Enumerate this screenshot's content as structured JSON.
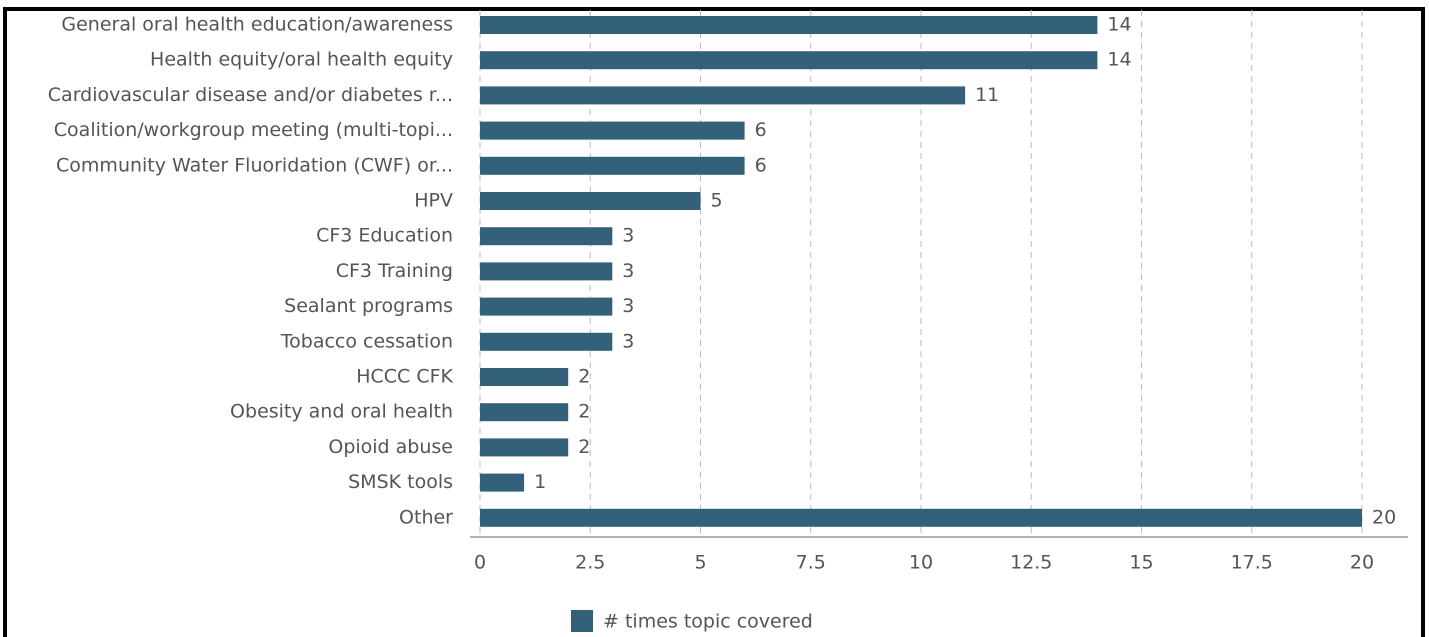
{
  "chart_data": {
    "type": "bar",
    "orientation": "horizontal",
    "categories": [
      "General oral health education/awareness",
      "Health equity/oral health equity",
      "Cardiovascular disease and/or diabetes r...",
      "Coalition/workgroup meeting (multi-topi...",
      "Community Water Fluoridation (CWF) or...",
      "HPV",
      "CF3 Education",
      "CF3 Training",
      "Sealant programs",
      "Tobacco cessation",
      "HCCC CFK",
      "Obesity and oral health",
      "Opioid abuse",
      "SMSK tools",
      "Other"
    ],
    "series": [
      {
        "name": "# times topic covered",
        "color": "#33617a",
        "values": [
          14,
          14,
          11,
          6,
          6,
          5,
          3,
          3,
          3,
          3,
          2,
          2,
          2,
          1,
          20
        ]
      }
    ],
    "xlim": [
      0,
      20
    ],
    "xticks": [
      0,
      2.5,
      5,
      7.5,
      10,
      12.5,
      15,
      17.5,
      20
    ],
    "grid": true,
    "legend": "bottom"
  }
}
